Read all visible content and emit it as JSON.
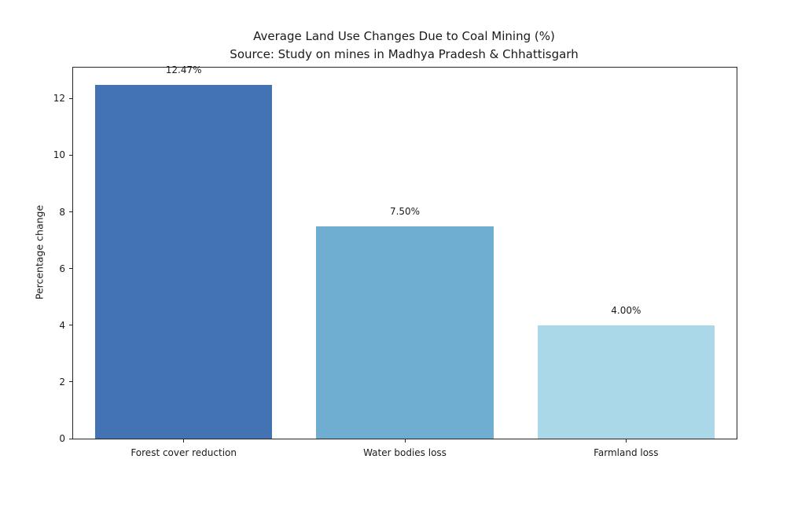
{
  "chart_data": {
    "type": "bar",
    "title": "Average Land Use Changes Due to Coal Mining (%)",
    "subtitle": "Source: Study on mines in Madhya Pradesh & Chhattisgarh",
    "categories": [
      "Forest cover reduction",
      "Water bodies loss",
      "Farmland loss"
    ],
    "values": [
      12.47,
      7.5,
      4.0
    ],
    "value_labels": [
      "12.47%",
      "7.50%",
      "4.00%"
    ],
    "bar_colors": [
      "#4473b4",
      "#70aed1",
      "#abd8e8"
    ],
    "xlabel": "",
    "ylabel": "Percentage change",
    "ylim": [
      0,
      13.09
    ],
    "yticks": [
      0,
      2,
      4,
      6,
      8,
      10,
      12
    ],
    "bar_width_fraction": 0.8,
    "grid": false,
    "legend": "none",
    "background_color": "#ffffff",
    "spine_color": "#262626",
    "text_color": "#1a1a1a"
  }
}
